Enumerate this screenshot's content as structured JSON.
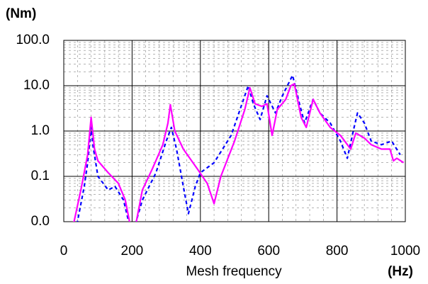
{
  "chart_data": {
    "type": "line",
    "y_unit": "(Nm)",
    "x_unit": "(Hz)",
    "x_label": "Mesh frequency",
    "xlim": [
      0,
      1000
    ],
    "xticks": [
      0,
      200,
      400,
      600,
      800,
      1000
    ],
    "ylim": [
      0.01,
      100
    ],
    "yticks": [
      {
        "value": 0.01,
        "label": "0.0"
      },
      {
        "value": 0.1,
        "label": "0.1"
      },
      {
        "value": 1,
        "label": "1.0"
      },
      {
        "value": 10,
        "label": "10.0"
      },
      {
        "value": 100,
        "label": "100.0"
      }
    ],
    "log_y": true,
    "grid": true,
    "series": [
      {
        "color": "#0000ff",
        "dash": true,
        "x": [
          20,
          40,
          60,
          70,
          80,
          85,
          100,
          130,
          150,
          175,
          190,
          200,
          230,
          270,
          300,
          315,
          330,
          350,
          365,
          385,
          400,
          440,
          490,
          540,
          555,
          575,
          595,
          620,
          640,
          670,
          690,
          705,
          730,
          750,
          780,
          810,
          830,
          850,
          860,
          880,
          900,
          930,
          960,
          985
        ],
        "values": [
          0.005,
          0.01,
          0.06,
          0.2,
          1.2,
          0.5,
          0.1,
          0.05,
          0.06,
          0.03,
          0.01,
          0.005,
          0.03,
          0.12,
          0.6,
          1.2,
          0.4,
          0.06,
          0.015,
          0.06,
          0.12,
          0.2,
          0.8,
          10,
          4,
          1.8,
          6,
          2.5,
          6,
          17,
          4,
          1.5,
          5,
          2.5,
          1.5,
          0.6,
          0.25,
          1.2,
          2.5,
          1.5,
          0.6,
          0.5,
          0.6,
          0.3
        ]
      },
      {
        "color": "#ff00ff",
        "dash": false,
        "x": [
          10,
          30,
          50,
          70,
          80,
          90,
          100,
          130,
          160,
          180,
          195,
          210,
          230,
          260,
          290,
          305,
          312,
          325,
          350,
          390,
          420,
          440,
          460,
          500,
          530,
          545,
          560,
          580,
          595,
          610,
          625,
          650,
          665,
          675,
          695,
          710,
          730,
          750,
          780,
          810,
          840,
          855,
          880,
          900,
          930,
          955,
          965,
          975,
          995
        ],
        "values": [
          0.008,
          0.01,
          0.05,
          0.3,
          2.0,
          0.4,
          0.22,
          0.12,
          0.07,
          0.03,
          0.008,
          0.008,
          0.05,
          0.15,
          0.5,
          1.5,
          3.8,
          1.0,
          0.4,
          0.15,
          0.07,
          0.025,
          0.1,
          0.6,
          3,
          9,
          4,
          3.5,
          4,
          0.8,
          3,
          5,
          10,
          11,
          2,
          1.2,
          5,
          2.5,
          1.2,
          0.8,
          0.4,
          0.9,
          0.7,
          0.5,
          0.4,
          0.4,
          0.22,
          0.25,
          0.2
        ]
      }
    ]
  }
}
